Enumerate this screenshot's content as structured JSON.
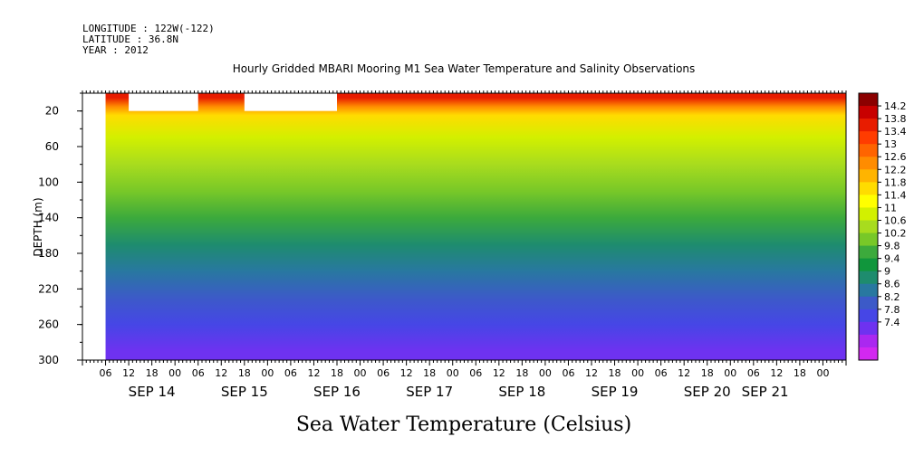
{
  "meta_lines": [
    "LONGITUDE : 122W(-122)",
    "LATITUDE : 36.8N",
    "YEAR : 2012"
  ],
  "chart_data": {
    "type": "heatmap",
    "title": "Hourly Gridded MBARI Mooring M1 Sea Water Temperature and Salinity Observations",
    "ylabel": "DEPTH (m)",
    "colorbar_title": "Sea Water Temperature (Celsius)",
    "ylim": [
      300,
      0
    ],
    "yticks": [
      20,
      60,
      100,
      140,
      180,
      220,
      260,
      300
    ],
    "xlim_hours": [
      0,
      192
    ],
    "hour_labels": [
      "06",
      "12",
      "18",
      "00",
      "06",
      "12",
      "18",
      "00",
      "06",
      "12",
      "18",
      "00",
      "06",
      "12",
      "18",
      "00",
      "06",
      "12",
      "18",
      "00",
      "06",
      "12",
      "18",
      "00",
      "06",
      "12",
      "18",
      "00",
      "06",
      "12",
      "18",
      "00"
    ],
    "day_labels": [
      "SEP 14",
      "SEP 15",
      "SEP 16",
      "SEP 17",
      "SEP 18",
      "SEP 19",
      "SEP 20",
      "SEP 21"
    ],
    "day_label_hours": [
      12,
      36,
      60,
      84,
      108,
      132,
      156,
      171
    ],
    "colorbar_levels": [
      14.2,
      13.8,
      13.4,
      13,
      12.6,
      12.2,
      11.8,
      11.4,
      11,
      10.6,
      10.2,
      9.8,
      9.4,
      9,
      8.6,
      8.2,
      7.8,
      7.4
    ],
    "colorbar_colors": [
      "#8b0000",
      "#c80000",
      "#e81c00",
      "#ff3c00",
      "#ff6400",
      "#ff8c00",
      "#ffb400",
      "#ffdc00",
      "#ffff00",
      "#d2f000",
      "#a8dc1e",
      "#78c828",
      "#3caa3c",
      "#10963c",
      "#1e8c6e",
      "#2878a0",
      "#3c5ac8",
      "#4646e6",
      "#6e32f0",
      "#aa28f0",
      "#d228f0"
    ],
    "missing_regions_hours": [
      [
        -6,
        0
      ],
      [
        6,
        24
      ],
      [
        36,
        60
      ]
    ],
    "temperature_profile": [
      {
        "depth": 5,
        "temp": 13.6
      },
      {
        "depth": 15,
        "temp": 12.4
      },
      {
        "depth": 25,
        "temp": 11.8
      },
      {
        "depth": 50,
        "temp": 11.2
      },
      {
        "depth": 80,
        "temp": 10.9
      },
      {
        "depth": 110,
        "temp": 10.5
      },
      {
        "depth": 140,
        "temp": 10.0
      },
      {
        "depth": 170,
        "temp": 9.6
      },
      {
        "depth": 200,
        "temp": 9.2
      },
      {
        "depth": 230,
        "temp": 8.8
      },
      {
        "depth": 260,
        "temp": 8.4
      },
      {
        "depth": 290,
        "temp": 7.9
      }
    ]
  }
}
